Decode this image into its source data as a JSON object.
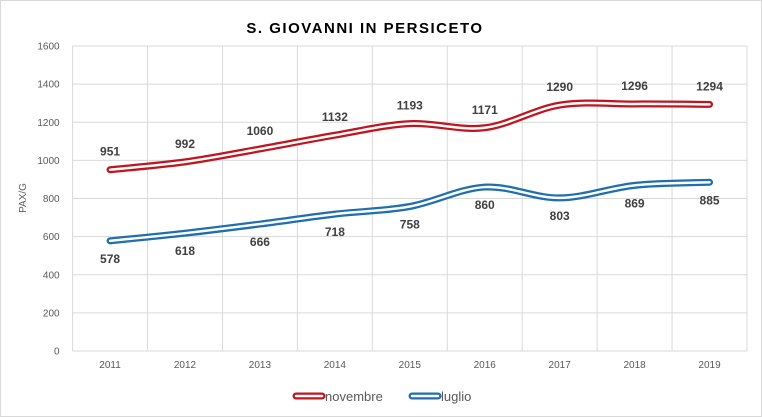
{
  "chart_data": {
    "type": "line",
    "title": "S. GIOVANNI IN PERSICETO",
    "xlabel": "",
    "ylabel": "PAX/G",
    "categories": [
      "2011",
      "2012",
      "2013",
      "2014",
      "2015",
      "2016",
      "2017",
      "2018",
      "2019"
    ],
    "ylim": [
      0,
      1600
    ],
    "yticks": [
      0,
      200,
      400,
      600,
      800,
      1000,
      1200,
      1400,
      1600
    ],
    "grid": true,
    "smoothed": true,
    "legend_position": "bottom",
    "series": [
      {
        "name": "novembre",
        "color": "#c0141f",
        "label_position": "above",
        "values": [
          951,
          992,
          1060,
          1132,
          1193,
          1171,
          1290,
          1296,
          1294
        ]
      },
      {
        "name": "luglio",
        "color": "#1f6fad",
        "label_position": "below",
        "values": [
          578,
          618,
          666,
          718,
          758,
          860,
          803,
          869,
          885
        ]
      }
    ]
  }
}
